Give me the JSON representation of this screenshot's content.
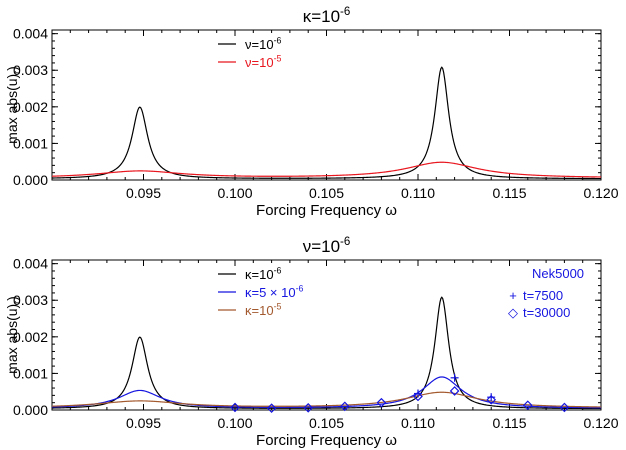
{
  "chart_data": [
    {
      "type": "line",
      "title": {
        "base": "κ=10",
        "sup": "-6"
      },
      "xlabel": "Forcing Frequency ω",
      "ylabel": "max abs(u)",
      "ylabel_sub": "r",
      "xlim": [
        0.09,
        0.12
      ],
      "ylim": [
        0,
        0.0041
      ],
      "xticks": [
        "0.095",
        "0.100",
        "0.105",
        "0.110",
        "0.115",
        "0.120"
      ],
      "yticks": [
        "0.000",
        "0.001",
        "0.002",
        "0.003",
        "0.004"
      ],
      "legend": [
        {
          "base": "ν=10",
          "sup": "-6",
          "color": "#000000"
        },
        {
          "base": "ν=10",
          "sup": "-5",
          "color": "#e8161e"
        }
      ],
      "series": [
        {
          "color": "#000000",
          "model": [
            {
              "w0": 0.0948,
              "A": 0.00196,
              "g": 0.00052
            },
            {
              "w0": 0.1113,
              "A": 0.00305,
              "g": 0.00046
            }
          ],
          "floor": 3e-05
        },
        {
          "color": "#e8161e",
          "model": [
            {
              "w0": 0.0948,
              "A": 0.00019,
              "g": 0.0028
            },
            {
              "w0": 0.1113,
              "A": 0.00043,
              "g": 0.0024
            }
          ],
          "floor": 5e-05
        }
      ],
      "markers": []
    },
    {
      "type": "line",
      "title": {
        "base": "ν=10",
        "sup": "-6"
      },
      "xlabel": "Forcing Frequency ω",
      "ylabel": "max abs(u)",
      "ylabel_sub": "r",
      "xlim": [
        0.09,
        0.12
      ],
      "ylim": [
        0,
        0.0041
      ],
      "xticks": [
        "0.095",
        "0.100",
        "0.105",
        "0.110",
        "0.115",
        "0.120"
      ],
      "yticks": [
        "0.000",
        "0.001",
        "0.002",
        "0.003",
        "0.004"
      ],
      "legend": [
        {
          "base": "κ=10",
          "sup": "-6",
          "color": "#000000"
        },
        {
          "base": "κ=5 × 10",
          "sup": "-6",
          "color": "#1616e0"
        },
        {
          "base": "κ=10",
          "sup": "-5",
          "color": "#a3592e"
        }
      ],
      "legend2": {
        "title": "Nek5000",
        "color": "#1616e0",
        "items": [
          {
            "symbol": "+",
            "label": "t=7500"
          },
          {
            "symbol": "◇",
            "label": "t=30000"
          }
        ]
      },
      "series": [
        {
          "color": "#000000",
          "model": [
            {
              "w0": 0.0948,
              "A": 0.00196,
              "g": 0.00052
            },
            {
              "w0": 0.1113,
              "A": 0.00305,
              "g": 0.00046
            }
          ],
          "floor": 3e-05
        },
        {
          "color": "#1616e0",
          "model": [
            {
              "w0": 0.0948,
              "A": 0.00049,
              "g": 0.0014
            },
            {
              "w0": 0.1113,
              "A": 0.00086,
              "g": 0.0013
            }
          ],
          "floor": 4e-05
        },
        {
          "color": "#a3592e",
          "model": [
            {
              "w0": 0.0948,
              "A": 0.00019,
              "g": 0.0028
            },
            {
              "w0": 0.1113,
              "A": 0.00043,
              "g": 0.0024
            }
          ],
          "floor": 5e-05
        }
      ],
      "markers": [
        {
          "symbol": "plus",
          "name": "t=7500",
          "color": "#1616e0",
          "points": [
            [
              0.11,
              0.00045
            ],
            [
              0.112,
              0.00088
            ],
            [
              0.114,
              0.00035
            ]
          ]
        },
        {
          "symbol": "diamond",
          "name": "t=30000",
          "color": "#1616e0",
          "points": [
            [
              0.1,
              7e-05
            ],
            [
              0.102,
              5e-05
            ],
            [
              0.104,
              6e-05
            ],
            [
              0.106,
              0.0001
            ],
            [
              0.108,
              0.0002
            ],
            [
              0.11,
              0.00037
            ],
            [
              0.112,
              0.00052
            ],
            [
              0.114,
              0.00028
            ],
            [
              0.116,
              0.00013
            ],
            [
              0.118,
              7e-05
            ]
          ]
        }
      ]
    }
  ]
}
